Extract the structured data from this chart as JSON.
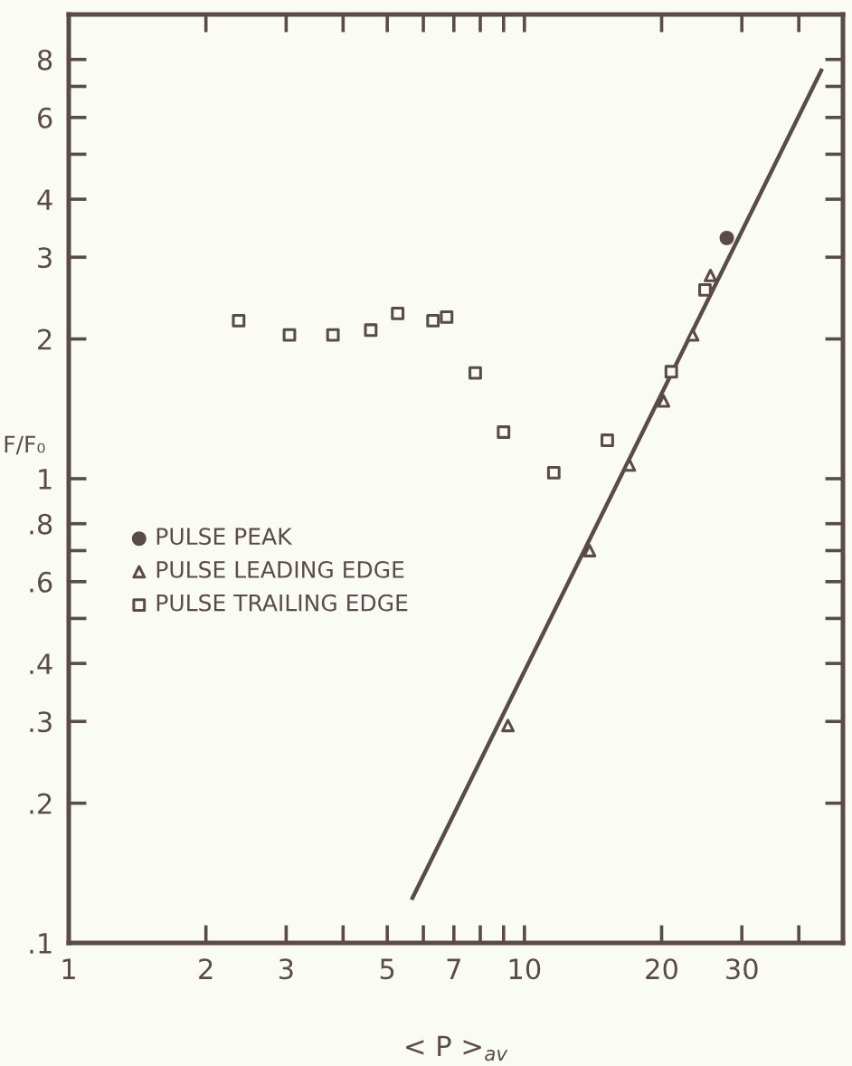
{
  "chart_data": {
    "type": "scatter",
    "xlabel": "< P >$_{av}$",
    "ylabel": "F/F₀",
    "log": "xy",
    "xlim": [
      1,
      50
    ],
    "ylim": [
      0.1,
      10
    ],
    "xticks": [
      1,
      2,
      3,
      {
        "value": 4,
        "label": null
      },
      5,
      {
        "value": 6,
        "label": null
      },
      7,
      {
        "value": 8,
        "label": null
      },
      {
        "value": 9,
        "label": null
      },
      10,
      20,
      30,
      {
        "value": 40,
        "label": null
      }
    ],
    "yticks": [
      {
        "value": 0.1,
        "label": ".1"
      },
      {
        "value": 0.2,
        "label": ".2"
      },
      {
        "value": 0.3,
        "label": ".3"
      },
      {
        "value": 0.4,
        "label": ".4"
      },
      {
        "value": 0.5,
        "label": null
      },
      {
        "value": 0.6,
        "label": ".6"
      },
      {
        "value": 0.7,
        "label": null
      },
      {
        "value": 0.8,
        "label": ".8"
      },
      1,
      2,
      3,
      4,
      {
        "value": 5,
        "label": null
      },
      6,
      {
        "value": 7,
        "label": null
      },
      8
    ],
    "grid": false,
    "legend": "left",
    "series": [
      {
        "name": "PULSE PEAK",
        "color": "#5a4a48",
        "marker": "circle",
        "x": [
          27.8
        ],
        "values": [
          3.3
        ]
      },
      {
        "name": "PULSE LEADING EDGE",
        "color": "#5a4a48",
        "marker": "triangle",
        "x": [
          9.2,
          13.9,
          17,
          20.2,
          23.4,
          25.6
        ],
        "values": [
          0.294,
          0.7,
          1.07,
          1.47,
          2.04,
          2.74
        ]
      },
      {
        "name": "PULSE TRAILING EDGE",
        "color": "#5a4a48",
        "marker": "square",
        "x": [
          2.36,
          3.05,
          3.8,
          4.6,
          5.27,
          6.3,
          6.75,
          7.8,
          9.0,
          11.6,
          15.2,
          21,
          24.9
        ],
        "values": [
          2.19,
          2.04,
          2.04,
          2.09,
          2.27,
          2.19,
          2.23,
          1.69,
          1.26,
          1.03,
          1.21,
          1.7,
          2.55
        ]
      },
      {
        "type": "line",
        "color": "#5a4a48",
        "x": [
          5.68,
          44.8
        ],
        "values": [
          0.125,
          7.57
        ]
      }
    ]
  }
}
